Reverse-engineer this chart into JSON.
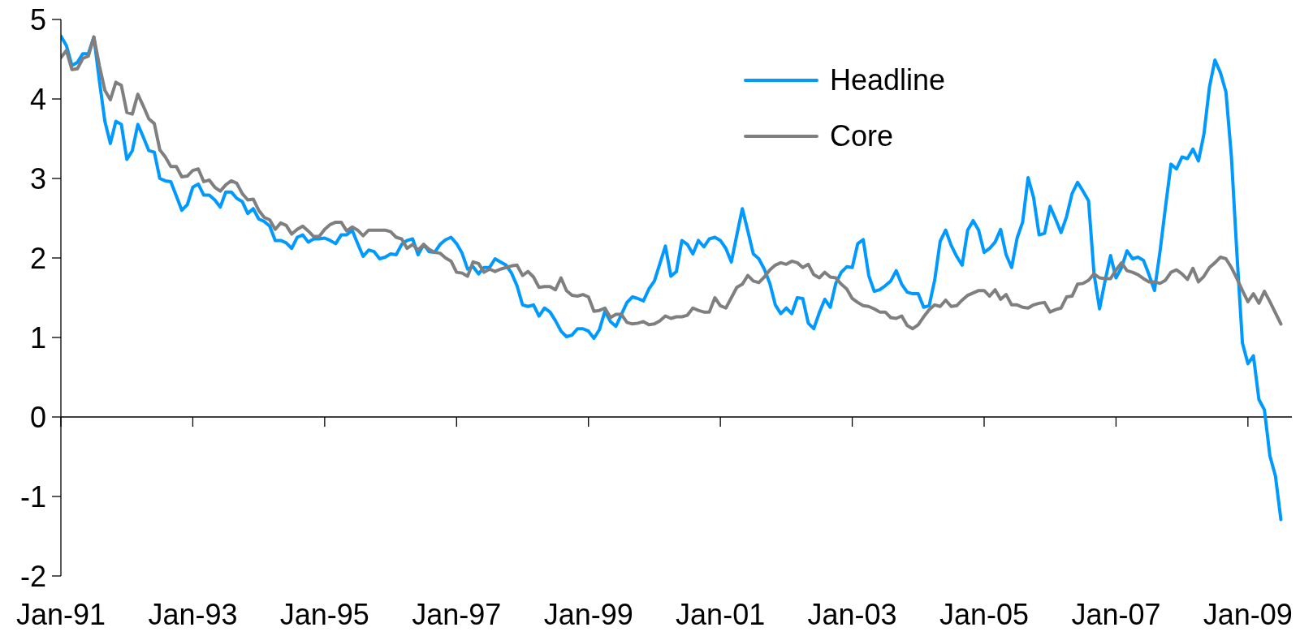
{
  "chart_data": {
    "type": "line",
    "x": [
      "1991-01",
      "1991-02",
      "1991-03",
      "1991-04",
      "1991-05",
      "1991-06",
      "1991-07",
      "1991-08",
      "1991-09",
      "1991-10",
      "1991-11",
      "1991-12",
      "1992-01",
      "1992-02",
      "1992-03",
      "1992-04",
      "1992-05",
      "1992-06",
      "1992-07",
      "1992-08",
      "1992-09",
      "1992-10",
      "1992-11",
      "1992-12",
      "1993-01",
      "1993-02",
      "1993-03",
      "1993-04",
      "1993-05",
      "1993-06",
      "1993-07",
      "1993-08",
      "1993-09",
      "1993-10",
      "1993-11",
      "1993-12",
      "1994-01",
      "1994-02",
      "1994-03",
      "1994-04",
      "1994-05",
      "1994-06",
      "1994-07",
      "1994-08",
      "1994-09",
      "1994-10",
      "1994-11",
      "1994-12",
      "1995-01",
      "1995-02",
      "1995-03",
      "1995-04",
      "1995-05",
      "1995-06",
      "1995-07",
      "1995-08",
      "1995-09",
      "1995-10",
      "1995-11",
      "1995-12",
      "1996-01",
      "1996-02",
      "1996-03",
      "1996-04",
      "1996-05",
      "1996-06",
      "1996-07",
      "1996-08",
      "1996-09",
      "1996-10",
      "1996-11",
      "1996-12",
      "1997-01",
      "1997-02",
      "1997-03",
      "1997-04",
      "1997-05",
      "1997-06",
      "1997-07",
      "1997-08",
      "1997-09",
      "1997-10",
      "1997-11",
      "1997-12",
      "1998-01",
      "1998-02",
      "1998-03",
      "1998-04",
      "1998-05",
      "1998-06",
      "1998-07",
      "1998-08",
      "1998-09",
      "1998-10",
      "1998-11",
      "1998-12",
      "1999-01",
      "1999-02",
      "1999-03",
      "1999-04",
      "1999-05",
      "1999-06",
      "1999-07",
      "1999-08",
      "1999-09",
      "1999-10",
      "1999-11",
      "1999-12",
      "2000-01",
      "2000-02",
      "2000-03",
      "2000-04",
      "2000-05",
      "2000-06",
      "2000-07",
      "2000-08",
      "2000-09",
      "2000-10",
      "2000-11",
      "2000-12",
      "2001-01",
      "2001-02",
      "2001-03",
      "2001-04",
      "2001-05",
      "2001-06",
      "2001-07",
      "2001-08",
      "2001-09",
      "2001-10",
      "2001-11",
      "2001-12",
      "2002-01",
      "2002-02",
      "2002-03",
      "2002-04",
      "2002-05",
      "2002-06",
      "2002-07",
      "2002-08",
      "2002-09",
      "2002-10",
      "2002-11",
      "2002-12",
      "2003-01",
      "2003-02",
      "2003-03",
      "2003-04",
      "2003-05",
      "2003-06",
      "2003-07",
      "2003-08",
      "2003-09",
      "2003-10",
      "2003-11",
      "2003-12",
      "2004-01",
      "2004-02",
      "2004-03",
      "2004-04",
      "2004-05",
      "2004-06",
      "2004-07",
      "2004-08",
      "2004-09",
      "2004-10",
      "2004-11",
      "2004-12",
      "2005-01",
      "2005-02",
      "2005-03",
      "2005-04",
      "2005-05",
      "2005-06",
      "2005-07",
      "2005-08",
      "2005-09",
      "2005-10",
      "2005-11",
      "2005-12",
      "2006-01",
      "2006-02",
      "2006-03",
      "2006-04",
      "2006-05",
      "2006-06",
      "2006-07",
      "2006-08",
      "2006-09",
      "2006-10",
      "2006-11",
      "2006-12",
      "2007-01",
      "2007-02",
      "2007-03",
      "2007-04",
      "2007-05",
      "2007-06",
      "2007-07",
      "2007-08",
      "2007-09",
      "2007-10",
      "2007-11",
      "2007-12",
      "2008-01",
      "2008-02",
      "2008-03",
      "2008-04",
      "2008-05",
      "2008-06",
      "2008-07",
      "2008-08",
      "2008-09",
      "2008-10",
      "2008-11",
      "2008-12",
      "2009-01",
      "2009-02",
      "2009-03",
      "2009-04",
      "2009-05",
      "2009-06",
      "2009-07"
    ],
    "series": [
      {
        "name": "Headline",
        "color": "#0099ff",
        "values": [
          4.79,
          4.67,
          4.42,
          4.46,
          4.57,
          4.57,
          4.78,
          4.23,
          3.72,
          3.44,
          3.72,
          3.68,
          3.24,
          3.35,
          3.68,
          3.52,
          3.35,
          3.33,
          3.0,
          2.97,
          2.96,
          2.78,
          2.6,
          2.67,
          2.89,
          2.93,
          2.79,
          2.79,
          2.73,
          2.64,
          2.83,
          2.83,
          2.75,
          2.71,
          2.56,
          2.62,
          2.49,
          2.46,
          2.4,
          2.22,
          2.22,
          2.19,
          2.12,
          2.26,
          2.29,
          2.2,
          2.24,
          2.24,
          2.25,
          2.22,
          2.18,
          2.29,
          2.29,
          2.35,
          2.18,
          2.02,
          2.1,
          2.08,
          1.99,
          2.01,
          2.05,
          2.04,
          2.17,
          2.22,
          2.24,
          2.04,
          2.17,
          2.08,
          2.07,
          2.17,
          2.23,
          2.26,
          2.18,
          2.06,
          1.86,
          1.89,
          1.8,
          1.88,
          1.88,
          1.99,
          1.95,
          1.91,
          1.81,
          1.65,
          1.41,
          1.39,
          1.41,
          1.27,
          1.37,
          1.32,
          1.21,
          1.08,
          1.01,
          1.03,
          1.11,
          1.11,
          1.08,
          0.99,
          1.1,
          1.33,
          1.2,
          1.14,
          1.29,
          1.44,
          1.51,
          1.49,
          1.46,
          1.61,
          1.71,
          1.93,
          2.15,
          1.77,
          1.83,
          2.22,
          2.17,
          2.05,
          2.22,
          2.14,
          2.24,
          2.26,
          2.22,
          2.12,
          1.95,
          2.29,
          2.62,
          2.34,
          2.05,
          1.99,
          1.86,
          1.68,
          1.41,
          1.3,
          1.37,
          1.3,
          1.5,
          1.49,
          1.18,
          1.11,
          1.31,
          1.48,
          1.38,
          1.68,
          1.82,
          1.89,
          1.88,
          2.18,
          2.23,
          1.78,
          1.58,
          1.6,
          1.65,
          1.71,
          1.84,
          1.67,
          1.57,
          1.55,
          1.55,
          1.38,
          1.4,
          1.72,
          2.21,
          2.35,
          2.16,
          2.02,
          1.91,
          2.35,
          2.47,
          2.35,
          2.07,
          2.12,
          2.2,
          2.36,
          2.04,
          1.88,
          2.25,
          2.45,
          3.01,
          2.76,
          2.29,
          2.31,
          2.65,
          2.49,
          2.32,
          2.52,
          2.81,
          2.95,
          2.84,
          2.72,
          1.8,
          1.36,
          1.71,
          2.03,
          1.75,
          1.88,
          2.09,
          1.99,
          2.01,
          1.97,
          1.79,
          1.59,
          2.08,
          2.64,
          3.18,
          3.12,
          3.27,
          3.25,
          3.37,
          3.22,
          3.56,
          4.15,
          4.49,
          4.33,
          4.09,
          3.27,
          2.05,
          0.93,
          0.67,
          0.77,
          0.22,
          0.09,
          -0.49,
          -0.74,
          -1.29
        ]
      },
      {
        "name": "Core",
        "color": "#7f7f7f",
        "values": [
          4.52,
          4.61,
          4.37,
          4.38,
          4.51,
          4.54,
          4.78,
          4.42,
          4.11,
          3.99,
          4.21,
          4.17,
          3.83,
          3.81,
          4.06,
          3.91,
          3.75,
          3.69,
          3.36,
          3.27,
          3.15,
          3.15,
          3.02,
          3.03,
          3.1,
          3.12,
          2.96,
          2.98,
          2.89,
          2.84,
          2.92,
          2.97,
          2.94,
          2.81,
          2.73,
          2.74,
          2.6,
          2.51,
          2.48,
          2.36,
          2.44,
          2.41,
          2.3,
          2.36,
          2.4,
          2.34,
          2.27,
          2.27,
          2.36,
          2.42,
          2.45,
          2.45,
          2.34,
          2.39,
          2.35,
          2.28,
          2.35,
          2.35,
          2.35,
          2.35,
          2.33,
          2.26,
          2.24,
          2.12,
          2.17,
          2.1,
          2.17,
          2.11,
          2.07,
          2.06,
          2.0,
          1.96,
          1.82,
          1.81,
          1.77,
          1.95,
          1.93,
          1.82,
          1.86,
          1.83,
          1.86,
          1.88,
          1.9,
          1.91,
          1.78,
          1.83,
          1.76,
          1.63,
          1.64,
          1.64,
          1.6,
          1.75,
          1.59,
          1.53,
          1.52,
          1.54,
          1.51,
          1.33,
          1.34,
          1.37,
          1.25,
          1.29,
          1.29,
          1.19,
          1.17,
          1.18,
          1.2,
          1.16,
          1.17,
          1.21,
          1.27,
          1.24,
          1.26,
          1.26,
          1.28,
          1.37,
          1.34,
          1.32,
          1.32,
          1.5,
          1.4,
          1.37,
          1.5,
          1.63,
          1.67,
          1.78,
          1.71,
          1.69,
          1.76,
          1.85,
          1.91,
          1.94,
          1.92,
          1.96,
          1.94,
          1.88,
          1.92,
          1.79,
          1.75,
          1.82,
          1.76,
          1.75,
          1.67,
          1.61,
          1.49,
          1.44,
          1.4,
          1.39,
          1.36,
          1.32,
          1.32,
          1.25,
          1.24,
          1.27,
          1.15,
          1.11,
          1.16,
          1.26,
          1.35,
          1.41,
          1.39,
          1.47,
          1.39,
          1.4,
          1.47,
          1.53,
          1.56,
          1.59,
          1.59,
          1.52,
          1.6,
          1.48,
          1.54,
          1.41,
          1.41,
          1.38,
          1.37,
          1.41,
          1.43,
          1.44,
          1.32,
          1.35,
          1.37,
          1.51,
          1.52,
          1.67,
          1.68,
          1.72,
          1.8,
          1.75,
          1.74,
          1.74,
          1.85,
          1.94,
          1.84,
          1.82,
          1.79,
          1.74,
          1.7,
          1.7,
          1.68,
          1.72,
          1.82,
          1.85,
          1.8,
          1.73,
          1.87,
          1.7,
          1.77,
          1.88,
          1.94,
          2.01,
          1.99,
          1.88,
          1.74,
          1.59,
          1.45,
          1.55,
          1.43,
          1.58,
          1.45,
          1.31,
          1.17
        ]
      }
    ],
    "xlim": [
      "1991-01",
      "2009-09"
    ],
    "xticks": [
      {
        "value": "1991-01",
        "label": "Jan-91"
      },
      {
        "value": "1993-01",
        "label": "Jan-93"
      },
      {
        "value": "1995-01",
        "label": "Jan-95"
      },
      {
        "value": "1997-01",
        "label": "Jan-97"
      },
      {
        "value": "1999-01",
        "label": "Jan-99"
      },
      {
        "value": "2001-01",
        "label": "Jan-01"
      },
      {
        "value": "2003-01",
        "label": "Jan-03"
      },
      {
        "value": "2005-01",
        "label": "Jan-05"
      },
      {
        "value": "2007-01",
        "label": "Jan-07"
      },
      {
        "value": "2009-01",
        "label": "Jan-09"
      }
    ],
    "ylim": [
      -2,
      5
    ],
    "yticks": [
      -2,
      -1,
      0,
      1,
      2,
      3,
      4,
      5
    ],
    "legend": "top right"
  }
}
